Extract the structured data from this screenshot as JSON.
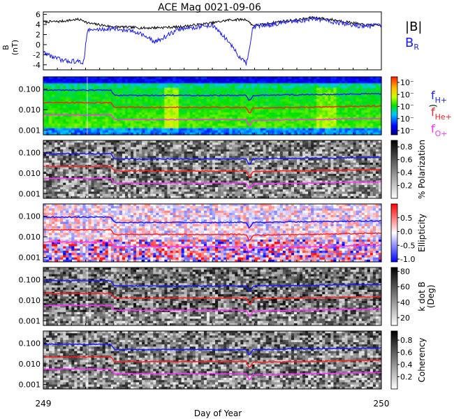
{
  "title": "ACE Mag 0021-09-06",
  "xlabel": "Day of Year",
  "x_tick_labels": [
    "249",
    "250"
  ],
  "colors": {
    "B_total": "#000000",
    "B_R": "#1a1aff",
    "f_H": "#1a1aff",
    "f_He": "#ff2020",
    "f_O": "#ff30ff"
  },
  "chart_data": [
    {
      "type": "line",
      "panel": "magnetic-field",
      "ylabel_line1": "B",
      "ylabel_line2": "(nT)",
      "ylim": [
        -5,
        6.5
      ],
      "yticks": [
        "6",
        "4",
        "2",
        "0",
        "-2",
        "-4"
      ],
      "xlim": [
        249,
        250
      ],
      "series": [
        {
          "name": "|B|",
          "color": "#000000",
          "x": [
            249.0,
            249.05,
            249.1,
            249.12,
            249.13,
            249.2,
            249.3,
            249.4,
            249.5,
            249.55,
            249.6,
            249.62,
            249.65,
            249.7,
            249.75,
            249.8,
            249.85,
            249.9,
            249.95,
            250.0
          ],
          "y": [
            4.5,
            4.6,
            5.0,
            4.8,
            4.3,
            3.6,
            3.3,
            3.5,
            4.3,
            4.9,
            5.0,
            3.8,
            4.0,
            4.6,
            4.9,
            5.4,
            5.0,
            4.5,
            3.9,
            3.8
          ]
        },
        {
          "name": "B_R",
          "color": "#1a1aff",
          "x": [
            249.0,
            249.03,
            249.06,
            249.09,
            249.12,
            249.125,
            249.13,
            249.2,
            249.28,
            249.33,
            249.4,
            249.5,
            249.55,
            249.58,
            249.6,
            249.61,
            249.62,
            249.65,
            249.7,
            249.75,
            249.8,
            249.85,
            249.9,
            249.95,
            250.0
          ],
          "y": [
            -1.5,
            -2.5,
            -3.2,
            -3.3,
            -3.5,
            0.0,
            2.8,
            3.2,
            2.5,
            0.5,
            3.0,
            3.9,
            0.5,
            -2.5,
            -3.8,
            -1.0,
            3.5,
            3.8,
            4.2,
            4.6,
            5.2,
            4.6,
            4.0,
            3.6,
            3.8
          ]
        }
      ],
      "legend": [
        "|B|",
        "B_R"
      ]
    },
    {
      "type": "heatmap",
      "panel": "power-spectrum",
      "ylim_log": [
        0.0006,
        0.4
      ],
      "yticks": [
        "0.100",
        "0.010",
        "0.001"
      ],
      "colorbar": {
        "label": ")",
        "ticks": [
          "10⁻",
          "10⁻",
          "10⁻",
          "10⁻",
          "10⁻"
        ]
      },
      "overlay_legend": [
        "f_H+",
        "f_He+",
        "f_O+"
      ],
      "series": [
        {
          "name": "f_H+",
          "x": [
            249.0,
            249.13,
            249.2,
            249.21,
            249.6,
            249.61,
            249.62,
            250.0
          ],
          "y": [
            0.09,
            0.09,
            0.09,
            0.05,
            0.05,
            0.025,
            0.05,
            0.06
          ]
        },
        {
          "name": "f_He+",
          "x": [
            249.0,
            249.13,
            249.2,
            249.21,
            249.6,
            249.61,
            249.62,
            250.0
          ],
          "y": [
            0.022,
            0.022,
            0.022,
            0.013,
            0.013,
            0.006,
            0.012,
            0.015
          ]
        },
        {
          "name": "f_O+",
          "x": [
            249.0,
            249.13,
            249.2,
            249.21,
            249.6,
            249.61,
            249.62,
            250.0
          ],
          "y": [
            0.0056,
            0.0056,
            0.0056,
            0.0033,
            0.0033,
            0.0016,
            0.003,
            0.0038
          ]
        }
      ]
    },
    {
      "type": "heatmap",
      "panel": "polarization",
      "yticks": [
        "0.100",
        "0.010",
        "0.001"
      ],
      "colorbar": {
        "label": "% Polarization",
        "ticks": [
          "0.8",
          "0.6",
          "0.4",
          "0.2"
        ],
        "range": [
          0,
          0.9
        ]
      }
    },
    {
      "type": "heatmap",
      "panel": "ellipticity",
      "yticks": [
        "0.100",
        "0.010",
        "0.001"
      ],
      "colorbar": {
        "label": "Ellipticity",
        "ticks": [
          "0.5",
          "0.0",
          "-0.5",
          "-1.0"
        ],
        "range": [
          -1.1,
          1.0
        ]
      }
    },
    {
      "type": "heatmap",
      "panel": "k-dot-b",
      "yticks": [
        "0.100",
        "0.010",
        "0.001"
      ],
      "colorbar": {
        "label": "k dot B",
        "label2": "(Deg)",
        "ticks": [
          "80",
          "60",
          "40",
          "20"
        ],
        "range": [
          10,
          85
        ]
      }
    },
    {
      "type": "heatmap",
      "panel": "coherency",
      "yticks": [
        "0.100",
        "0.010",
        "0.001"
      ],
      "colorbar": {
        "label": "Coherency",
        "ticks": [
          "0.8",
          "0.6",
          "0.4",
          "0.2"
        ],
        "range": [
          0,
          0.95
        ]
      }
    }
  ]
}
